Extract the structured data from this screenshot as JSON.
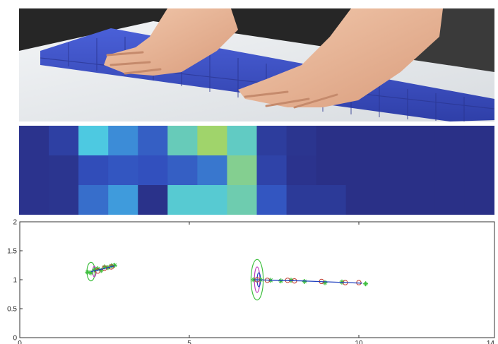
{
  "photo": {
    "subject": "hands pressing tactile sensor tiles",
    "tile_color": "#3a4fbf",
    "surface_color": "#e9ecef"
  },
  "heatmap": {
    "rows": 3,
    "cols": 16,
    "colormap": "parula",
    "cells": [
      [
        0.02,
        0.1,
        0.62,
        0.4,
        0.25,
        0.7,
        0.85,
        0.68,
        0.08,
        0.03,
        0.0,
        0.0,
        0.0,
        0.0,
        0.0,
        0.0
      ],
      [
        0.02,
        0.03,
        0.18,
        0.22,
        0.2,
        0.25,
        0.33,
        0.78,
        0.12,
        0.02,
        0.0,
        0.0,
        0.0,
        0.0,
        0.0,
        0.0
      ],
      [
        0.02,
        0.03,
        0.3,
        0.45,
        0.01,
        0.65,
        0.65,
        0.72,
        0.22,
        0.06,
        0.06,
        0.0,
        0.0,
        0.0,
        0.0,
        0.0
      ]
    ]
  },
  "chart_data": {
    "type": "scatter",
    "title": "",
    "xlabel": "",
    "ylabel": "",
    "xlim": [
      0,
      14
    ],
    "ylim": [
      0,
      2
    ],
    "xticks": [
      "0",
      "5",
      "10",
      "14"
    ],
    "yticks": [
      "0",
      "0.5",
      "1",
      "1.5",
      "2"
    ],
    "grid": false,
    "series": [
      {
        "marker": "star",
        "color": "#3fbf3f",
        "points": [
          [
            2.0,
            1.13
          ],
          [
            2.1,
            1.12
          ],
          [
            2.2,
            1.17
          ],
          [
            2.3,
            1.19
          ],
          [
            2.4,
            1.16
          ],
          [
            2.5,
            1.22
          ],
          [
            2.6,
            1.21
          ],
          [
            2.7,
            1.24
          ],
          [
            2.8,
            1.25
          ],
          [
            6.9,
            1.0
          ],
          [
            7.1,
            1.0
          ],
          [
            7.4,
            0.99
          ],
          [
            7.7,
            0.98
          ],
          [
            8.0,
            0.99
          ],
          [
            8.4,
            0.97
          ],
          [
            9.0,
            0.95
          ],
          [
            9.5,
            0.96
          ],
          [
            10.2,
            0.93
          ]
        ]
      },
      {
        "marker": "circle",
        "color": "#c0392b",
        "points": [
          [
            2.3,
            1.15
          ],
          [
            2.5,
            1.2
          ],
          [
            2.7,
            1.22
          ],
          [
            7.0,
            1.0
          ],
          [
            7.3,
            0.99
          ],
          [
            7.9,
            0.99
          ],
          [
            8.1,
            0.98
          ],
          [
            8.9,
            0.97
          ],
          [
            9.6,
            0.95
          ],
          [
            10.0,
            0.95
          ]
        ]
      },
      {
        "marker": "line",
        "color": "#1f3fbf",
        "points": [
          [
            2.1,
            1.14
          ],
          [
            2.4,
            1.18
          ],
          [
            2.8,
            1.24
          ],
          [
            6.9,
            1.0
          ],
          [
            7.5,
            0.99
          ],
          [
            8.3,
            0.98
          ],
          [
            9.2,
            0.96
          ],
          [
            10.1,
            0.94
          ]
        ]
      }
    ],
    "ellipses": [
      {
        "cx": 2.1,
        "cy": 1.14,
        "rx": 0.12,
        "ry": 0.16,
        "color": "#3fbf3f"
      },
      {
        "cx": 2.2,
        "cy": 1.14,
        "rx": 0.05,
        "ry": 0.09,
        "color": "#c03fc0"
      },
      {
        "cx": 7.0,
        "cy": 1.0,
        "rx": 0.18,
        "ry": 0.35,
        "color": "#3fbf3f"
      },
      {
        "cx": 7.0,
        "cy": 1.0,
        "rx": 0.08,
        "ry": 0.22,
        "color": "#c03fc0"
      },
      {
        "cx": 7.05,
        "cy": 1.0,
        "rx": 0.05,
        "ry": 0.12,
        "color": "#1f3fbf"
      }
    ]
  }
}
